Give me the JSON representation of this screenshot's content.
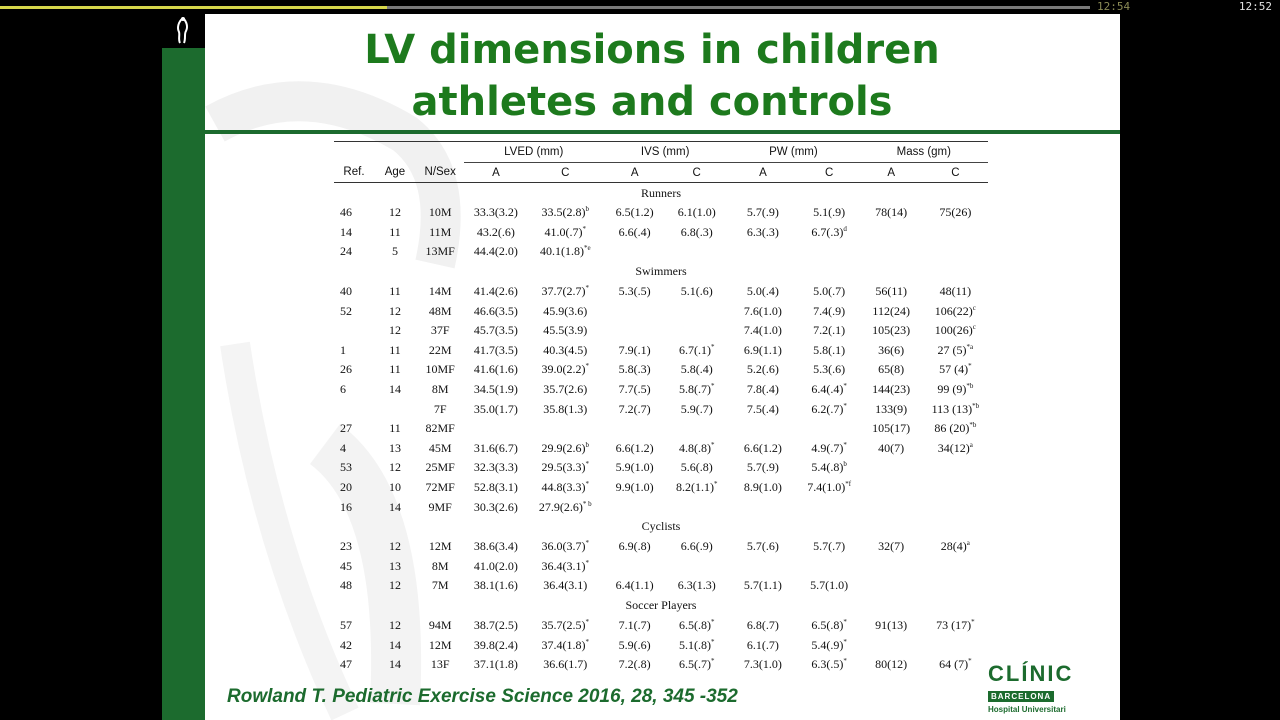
{
  "player": {
    "elapsed": "12:54",
    "clock": "12:52",
    "progress": 0.355
  },
  "slide": {
    "title_line1": "LV dimensions in children",
    "title_line2": "athletes and controls",
    "citation": "Rowland T. Pediatric Exercise Science 2016, 28, 345 -352",
    "logo": {
      "word": "CLÍNIC",
      "city": "BARCELONA",
      "hospital": "Hospital Universitari"
    },
    "accent_color": "#1c6b2e",
    "title_color": "#1d7a1d"
  },
  "table": {
    "group_headers": [
      "LVED (mm)",
      "IVS (mm)",
      "PW (mm)",
      "Mass (gm)"
    ],
    "col_headers": [
      "Ref.",
      "Age",
      "N/Sex",
      "A",
      "C",
      "A",
      "C",
      "A",
      "C",
      "A",
      "C"
    ],
    "sections": [
      {
        "name": "Runners",
        "rows": [
          [
            "46",
            "12",
            "10M",
            "33.3(3.2)",
            "33.5(2.8)^b",
            "6.5(1.2)",
            "6.1(1.0)",
            "5.7(.9)",
            "5.1(.9)",
            "78(14)",
            "75(26)"
          ],
          [
            "14",
            "11",
            "11M",
            "43.2(.6)",
            "41.0(.7)^*",
            "6.6(.4)",
            "6.8(.3)",
            "6.3(.3)",
            "6.7(.3)^d",
            "",
            ""
          ],
          [
            "24",
            "5",
            "13MF",
            "44.4(2.0)",
            "40.1(1.8)^*e",
            "",
            "",
            "",
            "",
            "",
            ""
          ]
        ]
      },
      {
        "name": "Swimmers",
        "rows": [
          [
            "40",
            "11",
            "14M",
            "41.4(2.6)",
            "37.7(2.7)^*",
            "5.3(.5)",
            "5.1(.6)",
            "5.0(.4)",
            "5.0(.7)",
            "56(11)",
            "48(11)"
          ],
          [
            "52",
            "12",
            "48M",
            "46.6(3.5)",
            "45.9(3.6)",
            "",
            "",
            "7.6(1.0)",
            "7.4(.9)",
            "112(24)",
            "106(22)^c"
          ],
          [
            "",
            "12",
            "37F",
            "45.7(3.5)",
            "45.5(3.9)",
            "",
            "",
            "7.4(1.0)",
            "7.2(.1)",
            "105(23)",
            "100(26)^c"
          ],
          [
            "1",
            "11",
            "22M",
            "41.7(3.5)",
            "40.3(4.5)",
            "7.9(.1)",
            "6.7(.1)^*",
            "6.9(1.1)",
            "5.8(.1)",
            "36(6)",
            "27 (5)^*a"
          ],
          [
            "26",
            "11",
            "10MF",
            "41.6(1.6)",
            "39.0(2.2)^*",
            "5.8(.3)",
            "5.8(.4)",
            "5.2(.6)",
            "5.3(.6)",
            "65(8)",
            "57 (4)^*"
          ],
          [
            "6",
            "14",
            "8M",
            "34.5(1.9)",
            "35.7(2.6)",
            "7.7(.5)",
            "5.8(.7)^*",
            "7.8(.4)",
            "6.4(.4)^*",
            "144(23)",
            "99 (9)^*b"
          ],
          [
            "",
            "",
            "7F",
            "35.0(1.7)",
            "35.8(1.3)",
            "7.2(.7)",
            "5.9(.7)",
            "7.5(.4)",
            "6.2(.7)^*",
            "133(9)",
            "113 (13)^*b"
          ],
          [
            "27",
            "11",
            "82MF",
            "",
            "",
            "",
            "",
            "",
            "",
            "105(17)",
            "86 (20)^*b"
          ],
          [
            "4",
            "13",
            "45M",
            "31.6(6.7)",
            "29.9(2.6)^b",
            "6.6(1.2)",
            "4.8(.8)^*",
            "6.6(1.2)",
            "4.9(.7)^*",
            "40(7)",
            "34(12)^a"
          ],
          [
            "53",
            "12",
            "25MF",
            "32.3(3.3)",
            "29.5(3.3)^*",
            "5.9(1.0)",
            "5.6(.8)",
            "5.7(.9)",
            "5.4(.8)^b",
            "",
            ""
          ],
          [
            "20",
            "10",
            "72MF",
            "52.8(3.1)",
            "44.8(3.3)^*",
            "9.9(1.0)",
            "8.2(1.1)^*",
            "8.9(1.0)",
            "7.4(1.0)^*f",
            "",
            ""
          ],
          [
            "16",
            "14",
            "9MF",
            "30.3(2.6)",
            "27.9(2.6)^* b",
            "",
            "",
            "",
            "",
            "",
            ""
          ]
        ]
      },
      {
        "name": "Cyclists",
        "rows": [
          [
            "23",
            "12",
            "12M",
            "38.6(3.4)",
            "36.0(3.7)^*",
            "6.9(.8)",
            "6.6(.9)",
            "5.7(.6)",
            "5.7(.7)",
            "32(7)",
            "28(4)^a"
          ],
          [
            "45",
            "13",
            "8M",
            "41.0(2.0)",
            "36.4(3.1)^*",
            "",
            "",
            "",
            "",
            "",
            ""
          ],
          [
            "48",
            "12",
            "7M",
            "38.1(1.6)",
            "36.4(3.1)",
            "6.4(1.1)",
            "6.3(1.3)",
            "5.7(1.1)",
            "5.7(1.0)",
            "",
            ""
          ]
        ]
      },
      {
        "name": "Soccer Players",
        "rows": [
          [
            "57",
            "12",
            "94M",
            "38.7(2.5)",
            "35.7(2.5)^*",
            "7.1(.7)",
            "6.5(.8)^*",
            "6.8(.7)",
            "6.5(.8)^*",
            "91(13)",
            "73 (17)^*"
          ],
          [
            "42",
            "14",
            "12M",
            "39.8(2.4)",
            "37.4(1.8)^*",
            "5.9(.6)",
            "5.1(.8)^*",
            "6.1(.7)",
            "5.4(.9)^*",
            "",
            ""
          ],
          [
            "47",
            "14",
            "13F",
            "37.1(1.8)",
            "36.6(1.7)",
            "7.2(.8)",
            "6.5(.7)^*",
            "7.3(1.0)",
            "6.3(.5)^*",
            "80(12)",
            "64 (7)^*"
          ]
        ]
      }
    ]
  }
}
